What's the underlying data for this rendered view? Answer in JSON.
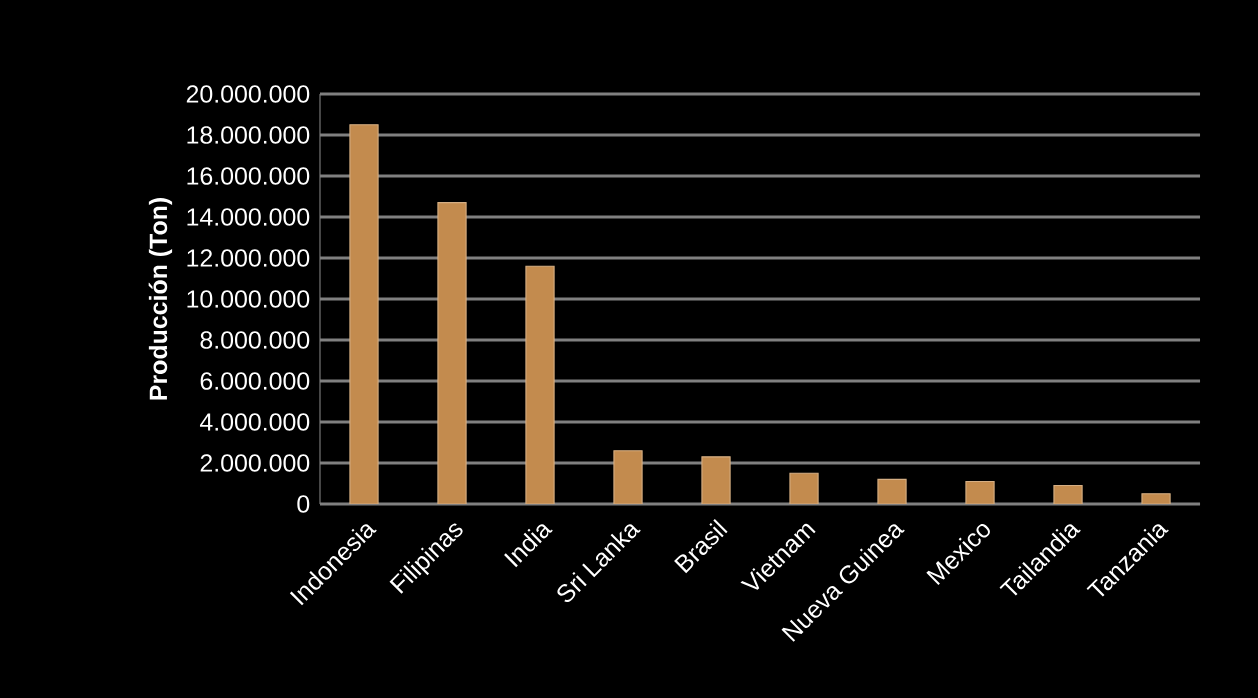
{
  "chart_data": {
    "type": "bar",
    "ylabel": "Producción (Ton)",
    "categories": [
      "Indonesia",
      "Filipinas",
      "India",
      "Sri Lanka",
      "Brasil",
      "Vietnam",
      "Nueva Guinea",
      "Mexico",
      "Tailandia",
      "Tanzania"
    ],
    "values": [
      18500000,
      14700000,
      11600000,
      2600000,
      2300000,
      1500000,
      1200000,
      1100000,
      900000,
      500000
    ],
    "color": "#c38b4e",
    "ylim": [
      0,
      20000000
    ],
    "yticks": [
      0,
      {
        "value": 2000000,
        "label": "2.000.000"
      },
      {
        "value": 4000000,
        "label": "4.000.000"
      },
      {
        "value": 6000000,
        "label": "6.000.000"
      },
      {
        "value": 8000000,
        "label": "8.000.000"
      },
      {
        "value": 10000000,
        "label": "10.000.000"
      },
      {
        "value": 12000000,
        "label": "12.000.000"
      },
      {
        "value": 14000000,
        "label": "14.000.000"
      },
      {
        "value": 16000000,
        "label": "16.000.000"
      },
      {
        "value": 18000000,
        "label": "18.000.000"
      },
      {
        "value": 20000000,
        "label": "20.000.000"
      }
    ],
    "grid": "y"
  }
}
